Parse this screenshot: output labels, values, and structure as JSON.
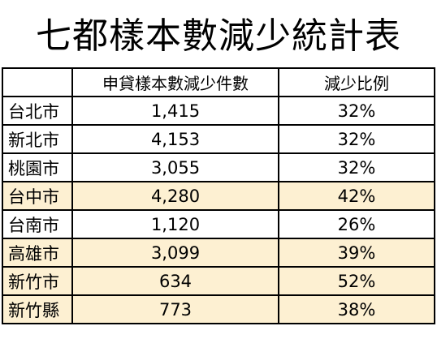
{
  "title": "七都樣本數減少統計表",
  "columns": [
    "",
    "申貸樣本數減少件數",
    "減少比例"
  ],
  "rows": [
    {
      "city": "台北市",
      "count": "1,415",
      "ratio": "32%",
      "highlight": false
    },
    {
      "city": "新北市",
      "count": "4,153",
      "ratio": "32%",
      "highlight": false
    },
    {
      "city": "桃園市",
      "count": "3,055",
      "ratio": "32%",
      "highlight": false
    },
    {
      "city": "台中市",
      "count": "4,280",
      "ratio": "42%",
      "highlight": true
    },
    {
      "city": "台南市",
      "count": "1,120",
      "ratio": "26%",
      "highlight": false
    },
    {
      "city": "高雄市",
      "count": "3,099",
      "ratio": "39%",
      "highlight": true
    },
    {
      "city": "新竹市",
      "count": "634",
      "ratio": "52%",
      "highlight": true
    },
    {
      "city": "新竹縣",
      "count": "773",
      "ratio": "38%",
      "highlight": true
    }
  ],
  "colors": {
    "highlight_row": "#fdf0d2",
    "border": "#000000"
  }
}
